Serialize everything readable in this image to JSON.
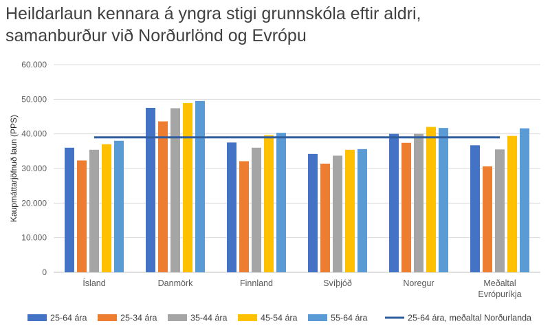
{
  "chart_data": {
    "type": "bar",
    "title_lines": [
      "Heildarlaun kennara á yngra stigi grunnskóla eftir aldri,",
      "samanburður við Norðurlönd og Evrópu"
    ],
    "ylabel": "Kaupmáttarjöfnuð laun (PPS)",
    "ylim": [
      0,
      60000
    ],
    "yticks": [
      0,
      10000,
      20000,
      30000,
      40000,
      50000,
      60000
    ],
    "ytick_labels": [
      "0",
      "10.000",
      "20.000",
      "30.000",
      "40.000",
      "50.000",
      "60.000"
    ],
    "grid": true,
    "legend_position": "bottom",
    "categories": [
      [
        "Ísland"
      ],
      [
        "Danmörk"
      ],
      [
        "Finnland"
      ],
      [
        "Svíþjóð"
      ],
      [
        "Noregur"
      ],
      [
        "Meðaltal",
        "Evrópuríkja"
      ]
    ],
    "series": [
      {
        "name": "25-64 ára",
        "color": "#4472C4",
        "values": [
          36000,
          47500,
          37500,
          34200,
          40000,
          36700
        ]
      },
      {
        "name": "25-34 ára",
        "color": "#ED7D31",
        "values": [
          32300,
          43600,
          32100,
          31400,
          37400,
          30600
        ]
      },
      {
        "name": "35-44 ára",
        "color": "#A5A5A5",
        "values": [
          35400,
          47400,
          36000,
          33700,
          40000,
          35500
        ]
      },
      {
        "name": "45-54 ára",
        "color": "#FFC000",
        "values": [
          37000,
          48900,
          39600,
          35400,
          42000,
          39400
        ]
      },
      {
        "name": "55-64 ára",
        "color": "#5B9BD5",
        "values": [
          38000,
          49500,
          40300,
          35600,
          41700,
          41600
        ]
      }
    ],
    "reference_line": {
      "name": "25-64 ára, meðaltal Norðurlanda",
      "color": "#2E5E9E",
      "value": 39000
    }
  }
}
